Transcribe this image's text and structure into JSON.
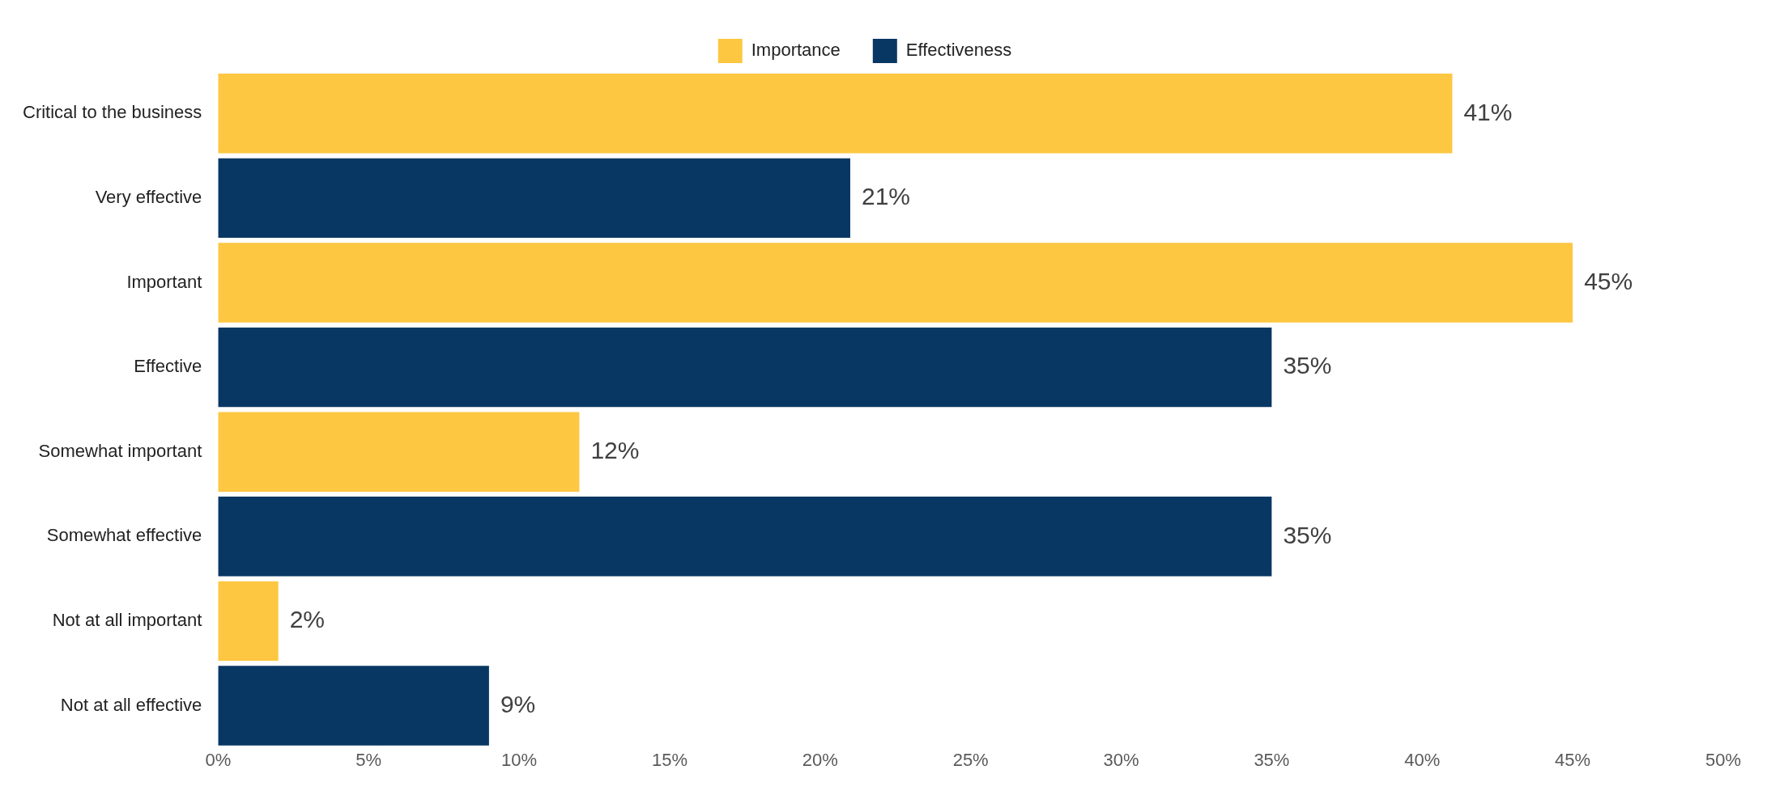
{
  "chart_data": {
    "type": "bar",
    "orientation": "horizontal",
    "categories": [
      "Critical to the business",
      "Very effective",
      "Important",
      "Effective",
      "Somewhat important",
      "Somewhat effective",
      "Not at all important",
      "Not at all effective"
    ],
    "series": [
      {
        "name": "Importance",
        "color": "#fdc741",
        "values": [
          41,
          null,
          45,
          null,
          12,
          null,
          2,
          null
        ],
        "value_labels": [
          "41%",
          null,
          "45%",
          null,
          "12%",
          null,
          "2%",
          null
        ]
      },
      {
        "name": "Effectiveness",
        "color": "#083763",
        "values": [
          null,
          21,
          null,
          35,
          null,
          35,
          null,
          9
        ],
        "value_labels": [
          null,
          "21%",
          null,
          "35%",
          null,
          "35%",
          null,
          "9%"
        ]
      }
    ],
    "xlim": [
      0,
      50
    ],
    "xticks": [
      {
        "value": 0,
        "label": "0%"
      },
      {
        "value": 5,
        "label": "5%"
      },
      {
        "value": 10,
        "label": "10%"
      },
      {
        "value": 15,
        "label": "15%"
      },
      {
        "value": 20,
        "label": "20%"
      },
      {
        "value": 25,
        "label": "25%"
      },
      {
        "value": 30,
        "label": "30%"
      },
      {
        "value": 35,
        "label": "35%"
      },
      {
        "value": 40,
        "label": "40%"
      },
      {
        "value": 45,
        "label": "45%"
      },
      {
        "value": 50,
        "label": "50%"
      }
    ],
    "legend": "top",
    "grid": false
  }
}
